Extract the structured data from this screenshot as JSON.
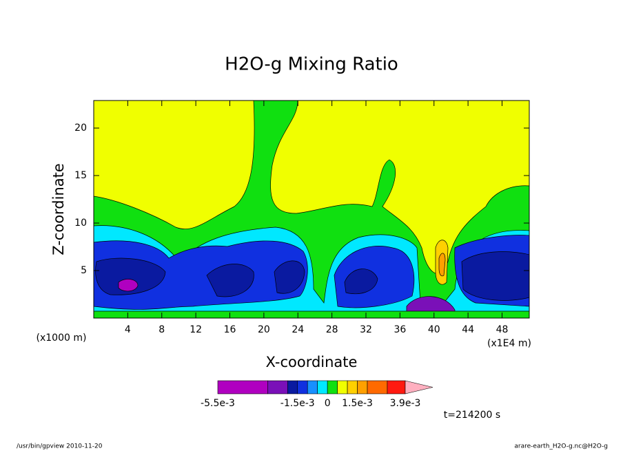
{
  "chart_data": {
    "type": "contour",
    "title": "H2O-g Mixing Ratio",
    "x_label": "X-coordinate",
    "y_label": "Z-coordinate",
    "x_unit": "(x1E4 m)",
    "y_unit": "(x1000 m)",
    "xlim": [
      0,
      51.2
    ],
    "ylim": [
      0,
      22.9
    ],
    "xticks": [
      4,
      8,
      12,
      16,
      20,
      24,
      28,
      32,
      36,
      40,
      44,
      48
    ],
    "yticks": [
      5,
      10,
      15,
      20
    ],
    "colorbar": {
      "clim": [
        -0.0055,
        0.0039
      ],
      "levels": [
        -0.0055,
        -0.003,
        -0.002,
        -0.0015,
        -0.001,
        -0.0005,
        0,
        0.0005,
        0.001,
        0.0015,
        0.002,
        0.003,
        0.0039
      ],
      "colors": [
        "#b000c0",
        "#7a10b8",
        "#0a1aa0",
        "#1030e0",
        "#1890ff",
        "#00e8ff",
        "#10e010",
        "#f0ff00",
        "#ffd000",
        "#ffa000",
        "#ff6a00",
        "#ff1a10",
        "#ff7a7a",
        "#ffb0c0"
      ],
      "ticks": [
        {
          "value": -0.0055,
          "label": "-5.5e-3"
        },
        {
          "value": -0.0015,
          "label": "-1.5e-3"
        },
        {
          "value": 0,
          "label": "0"
        },
        {
          "value": 0.0015,
          "label": "1.5e-3"
        },
        {
          "value": 0.0039,
          "label": "3.9e-3"
        }
      ]
    },
    "time_label": "t=214200 s",
    "footer_left": "/usr/bin/gpview  2010-11-20",
    "footer_right": "arare-earth_H2O-g.nc@H2O-g"
  }
}
